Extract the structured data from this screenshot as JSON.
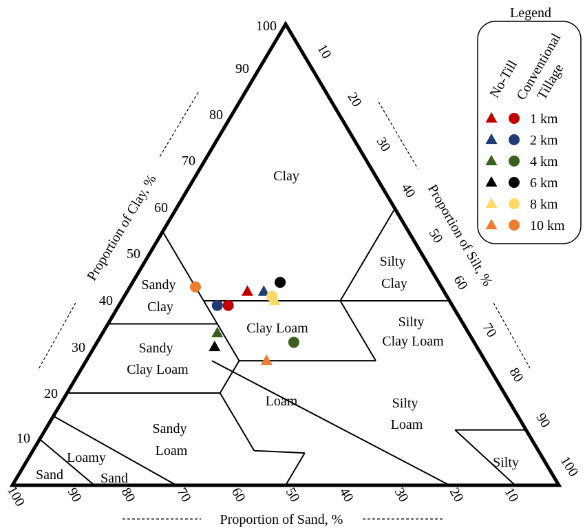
{
  "diagram": {
    "type": "ternary-soil-texture",
    "colors": {
      "1km": "#c00000",
      "2km": "#1f3b73",
      "4km": "#3a5f1e",
      "6km": "#000000",
      "8km": "#ffd966",
      "10km": "#ed7d31"
    },
    "axes": {
      "clay_title": "Proportion of Clay, %",
      "silt_title": "Proportion of Silt, %",
      "sand_title": "Proportion of Sand, %",
      "clay_ticks": [
        "10",
        "20",
        "30",
        "40",
        "50",
        "60",
        "70",
        "80",
        "90",
        "100"
      ],
      "silt_ticks": [
        "10",
        "20",
        "30",
        "40",
        "50",
        "60",
        "70",
        "80",
        "90",
        "100"
      ],
      "sand_ticks": [
        "100",
        "90",
        "80",
        "70",
        "60",
        "50",
        "40",
        "30",
        "20",
        "10"
      ]
    },
    "regions": [
      {
        "id": "clay",
        "lines": [
          "Clay"
        ]
      },
      {
        "id": "sandy-clay",
        "lines": [
          "Sandy",
          "Clay"
        ]
      },
      {
        "id": "silty-clay",
        "lines": [
          "Silty",
          "Clay"
        ]
      },
      {
        "id": "clay-loam",
        "lines": [
          "Clay Loam"
        ]
      },
      {
        "id": "sandy-clay-loam",
        "lines": [
          "Sandy",
          "Clay Loam"
        ]
      },
      {
        "id": "silty-clay-loam",
        "lines": [
          "Silty",
          "Clay Loam"
        ]
      },
      {
        "id": "loam",
        "lines": [
          "Loam"
        ]
      },
      {
        "id": "sandy-loam",
        "lines": [
          "Sandy",
          "Loam"
        ]
      },
      {
        "id": "silty-loam",
        "lines": [
          "Silty",
          "Loam"
        ]
      },
      {
        "id": "loamy-sand",
        "lines": [
          "Loamy",
          "Sand"
        ]
      },
      {
        "id": "sand",
        "lines": [
          "Sand"
        ]
      },
      {
        "id": "silty",
        "lines": [
          "Silty"
        ]
      }
    ],
    "legend": {
      "title": "Legend",
      "col_no_till": "No-Till",
      "col_conventional_1": "Conventional",
      "col_conventional_2": "Tillage",
      "entries": [
        {
          "label": "1 km",
          "color": "#c00000"
        },
        {
          "label": "2 km",
          "color": "#1f3b73"
        },
        {
          "label": "4 km",
          "color": "#3a5f1e"
        },
        {
          "label": "6 km",
          "color": "#000000"
        },
        {
          "label": "8 km",
          "color": "#ffd966"
        },
        {
          "label": "10 km",
          "color": "#ed7d31"
        }
      ]
    },
    "samples": {
      "no_till": [
        {
          "distance": "1 km",
          "sand": 36,
          "clay": 42,
          "silt": 22
        },
        {
          "distance": "2 km",
          "sand": 33,
          "clay": 42,
          "silt": 25
        },
        {
          "distance": "4 km",
          "sand": 46,
          "clay": 33,
          "silt": 21
        },
        {
          "distance": "6 km",
          "sand": 48,
          "clay": 30,
          "silt": 22
        },
        {
          "distance": "8 km",
          "sand": 32,
          "clay": 40,
          "silt": 28
        },
        {
          "distance": "10 km",
          "sand": 40,
          "clay": 27,
          "silt": 33
        }
      ],
      "conventional_tillage": [
        {
          "distance": "1 km",
          "sand": 41,
          "clay": 39,
          "silt": 20
        },
        {
          "distance": "2 km",
          "sand": 43,
          "clay": 39,
          "silt": 18
        },
        {
          "distance": "4 km",
          "sand": 33,
          "clay": 31,
          "silt": 36
        },
        {
          "distance": "6 km",
          "sand": 29,
          "clay": 44,
          "silt": 27
        },
        {
          "distance": "8 km",
          "sand": 32,
          "clay": 41,
          "silt": 27
        },
        {
          "distance": "10 km",
          "sand": 45,
          "clay": 43,
          "silt": 12
        }
      ]
    }
  }
}
